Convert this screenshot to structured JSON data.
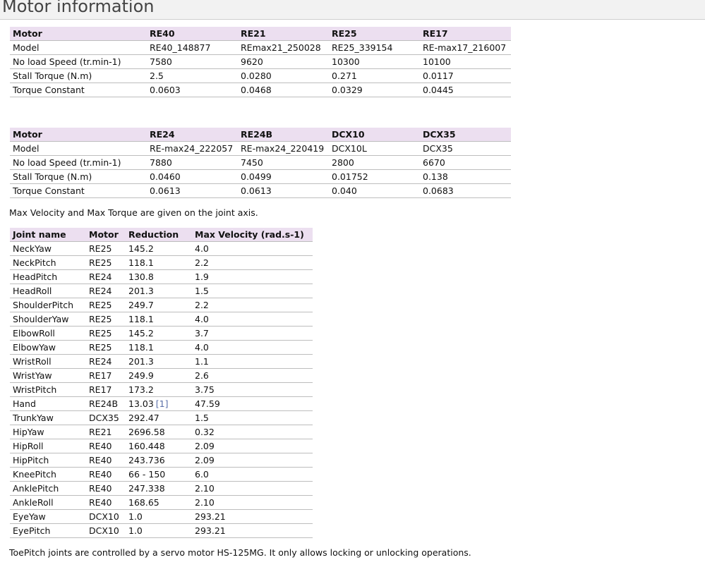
{
  "page": {
    "title": "Motor information"
  },
  "motor_tables": [
    {
      "header": [
        "Motor",
        "RE40",
        "RE21",
        "RE25",
        "RE17"
      ],
      "rows": [
        [
          "Model",
          "RE40_148877",
          "REmax21_250028",
          "RE25_339154",
          "RE-max17_216007"
        ],
        [
          "No load Speed (tr.min-1)",
          "7580",
          "9620",
          "10300",
          "10100"
        ],
        [
          "Stall Torque (N.m)",
          "2.5",
          "0.0280",
          "0.271",
          "0.0117"
        ],
        [
          "Torque Constant",
          "0.0603",
          "0.0468",
          "0.0329",
          "0.0445"
        ]
      ]
    },
    {
      "header": [
        "Motor",
        "RE24",
        "RE24B",
        "DCX10",
        "DCX35"
      ],
      "rows": [
        [
          "Model",
          "RE-max24_222057",
          "RE-max24_220419",
          "DCX10L",
          "DCX35"
        ],
        [
          "No load Speed (tr.min-1)",
          "7880",
          "7450",
          "2800",
          "6670"
        ],
        [
          "Stall Torque (N.m)",
          "0.0460",
          "0.0499",
          "0.01752",
          "0.138"
        ],
        [
          "Torque Constant",
          "0.0613",
          "0.0613",
          "0.040",
          "0.0683"
        ]
      ]
    }
  ],
  "notes": {
    "axis_note": "Max Velocity and Max Torque are given on the joint axis.",
    "toe_note": "ToePitch joints are controlled by a servo motor HS-125MG. It only allows locking or unlocking operations."
  },
  "joint_table": {
    "header": [
      "Joint name",
      "Motor",
      "Reduction",
      "Max Velocity (rad.s-1)"
    ],
    "rows": [
      {
        "joint": "NeckYaw",
        "motor": "RE25",
        "reduction": "145.2",
        "velocity": "4.0"
      },
      {
        "joint": "NeckPitch",
        "motor": "RE25",
        "reduction": "118.1",
        "velocity": "2.2"
      },
      {
        "joint": "HeadPitch",
        "motor": "RE24",
        "reduction": "130.8",
        "velocity": "1.9"
      },
      {
        "joint": "HeadRoll",
        "motor": "RE24",
        "reduction": "201.3",
        "velocity": "1.5"
      },
      {
        "joint": "ShoulderPitch",
        "motor": "RE25",
        "reduction": "249.7",
        "velocity": "2.2"
      },
      {
        "joint": "ShoulderYaw",
        "motor": "RE25",
        "reduction": "118.1",
        "velocity": "4.0"
      },
      {
        "joint": "ElbowRoll",
        "motor": "RE25",
        "reduction": "145.2",
        "velocity": "3.7"
      },
      {
        "joint": "ElbowYaw",
        "motor": "RE25",
        "reduction": "118.1",
        "velocity": "4.0"
      },
      {
        "joint": "WristRoll",
        "motor": "RE24",
        "reduction": "201.3",
        "velocity": "1.1"
      },
      {
        "joint": "WristYaw",
        "motor": "RE17",
        "reduction": "249.9",
        "velocity": "2.6"
      },
      {
        "joint": "WristPitch",
        "motor": "RE17",
        "reduction": "173.2",
        "velocity": "3.75"
      },
      {
        "joint": "Hand",
        "motor": "RE24B",
        "reduction": "13.03",
        "ref": "[1]",
        "velocity": "47.59"
      },
      {
        "joint": "TrunkYaw",
        "motor": "DCX35",
        "reduction": "292.47",
        "velocity": "1.5"
      },
      {
        "joint": "HipYaw",
        "motor": "RE21",
        "reduction": "2696.58",
        "velocity": "0.32"
      },
      {
        "joint": "HipRoll",
        "motor": "RE40",
        "reduction": "160.448",
        "velocity": "2.09"
      },
      {
        "joint": "HipPitch",
        "motor": "RE40",
        "reduction": "243.736",
        "velocity": "2.09"
      },
      {
        "joint": "KneePitch",
        "motor": "RE40",
        "reduction": "66 - 150",
        "velocity": "6.0"
      },
      {
        "joint": "AnklePitch",
        "motor": "RE40",
        "reduction": "247.338",
        "velocity": "2.10"
      },
      {
        "joint": "AnkleRoll",
        "motor": "RE40",
        "reduction": "168.65",
        "velocity": "2.10"
      },
      {
        "joint": "EyeYaw",
        "motor": "DCX10",
        "reduction": "1.0",
        "velocity": "293.21"
      },
      {
        "joint": "EyePitch",
        "motor": "DCX10",
        "reduction": "1.0",
        "velocity": "293.21"
      }
    ]
  },
  "colors": {
    "header_bg": "#ecdff0",
    "title_bar_bg": "#f2f2f2",
    "link": "#5a6fa8"
  }
}
